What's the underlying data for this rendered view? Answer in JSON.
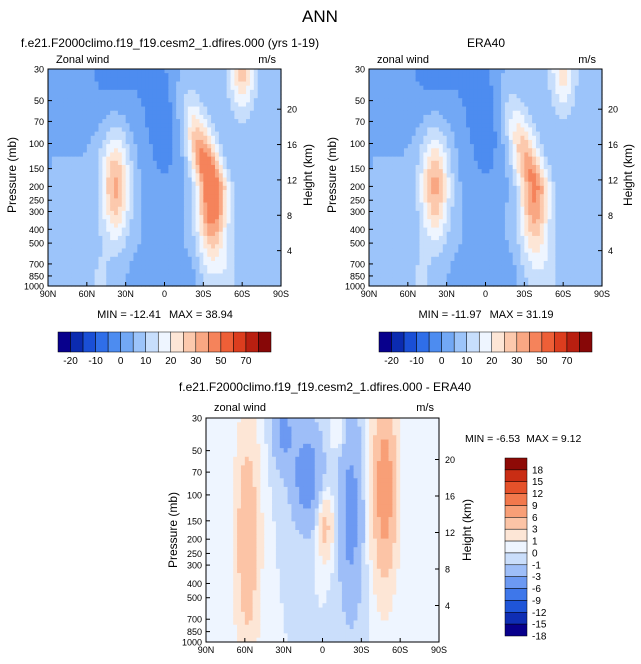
{
  "figure": {
    "title": "ANN"
  },
  "colors": {
    "abs_scale": [
      "#08008c",
      "#0b2bb0",
      "#1a4fd6",
      "#2f6ee8",
      "#4d8cf0",
      "#72a8f5",
      "#9cc4fa",
      "#c7defc",
      "#eef5ff",
      "#fde6d6",
      "#fcc9ad",
      "#f9a783",
      "#f5835b",
      "#ee5f37",
      "#dc3d1e",
      "#b91f10",
      "#870707"
    ],
    "diff_scale": [
      "#08008c",
      "#0f2eb4",
      "#1f55d8",
      "#3e77ea",
      "#6c99f2",
      "#9ebef8",
      "#cadefb",
      "#eef5ff",
      "#fde6d6",
      "#fcc4a6",
      "#f89f77",
      "#f2784c",
      "#e5512a",
      "#c92d14",
      "#8e0a06"
    ]
  },
  "chart_data": [
    {
      "type": "heatmap",
      "panel": "model",
      "title": "f.e21.F2000climo.f19_f19.cesm2_1.dfires.000 (yrs 1-19)",
      "left_label": "Zonal wind",
      "right_label": "m/s",
      "ylabel": "Pressure (mb)",
      "ylabel_right": "Height (km)",
      "x_ticks": [
        "90N",
        "60N",
        "30N",
        "0",
        "30S",
        "60S",
        "90S"
      ],
      "x_values": [
        90,
        60,
        30,
        0,
        -30,
        -60,
        -90
      ],
      "y_ticks": [
        "30",
        "50",
        "70",
        "100",
        "150",
        "200",
        "250",
        "300",
        "400",
        "500",
        "700",
        "850",
        "1000"
      ],
      "y_values": [
        30,
        50,
        70,
        100,
        150,
        200,
        250,
        300,
        400,
        500,
        700,
        850,
        1000
      ],
      "height_ticks": [
        "4",
        "8",
        "12",
        "16",
        "20"
      ],
      "height_values": [
        4,
        8,
        12,
        16,
        20
      ],
      "min_label": "MIN = -12.41",
      "max_label": "MAX = 38.94",
      "min": -12.41,
      "max": 38.94,
      "sh_jet": {
        "lat": -37,
        "p": 200,
        "speed": 38.94
      },
      "nh_jet": {
        "lat": 38,
        "p": 200,
        "speed": 26
      }
    },
    {
      "type": "heatmap",
      "panel": "obs",
      "title": "ERA40",
      "left_label": "zonal wind",
      "right_label": "m/s",
      "ylabel": "Pressure (mb)",
      "ylabel_right": "Height (km)",
      "x_ticks": [
        "90N",
        "60N",
        "30N",
        "0",
        "30S",
        "60S",
        "90S"
      ],
      "x_values": [
        90,
        60,
        30,
        0,
        -30,
        -60,
        -90
      ],
      "y_ticks": [
        "30",
        "50",
        "70",
        "100",
        "150",
        "200",
        "250",
        "300",
        "400",
        "500",
        "700",
        "850",
        "1000"
      ],
      "y_values": [
        30,
        50,
        70,
        100,
        150,
        200,
        250,
        300,
        400,
        500,
        700,
        850,
        1000
      ],
      "height_ticks": [
        "4",
        "8",
        "12",
        "16",
        "20"
      ],
      "height_values": [
        4,
        8,
        12,
        16,
        20
      ],
      "min_label": "MIN = -11.97",
      "max_label": "MAX = 31.19",
      "min": -11.97,
      "max": 31.19,
      "sh_jet": {
        "lat": -38,
        "p": 200,
        "speed": 31.19
      },
      "nh_jet": {
        "lat": 39,
        "p": 200,
        "speed": 26
      }
    },
    {
      "type": "heatmap",
      "panel": "difference",
      "title": "f.e21.F2000climo.f19_f19.cesm2_1.dfires.000 - ERA40",
      "left_label": "zonal wind",
      "right_label": "m/s",
      "ylabel": "Pressure (mb)",
      "ylabel_right": "Height (km)",
      "x_ticks": [
        "90N",
        "60N",
        "30N",
        "0",
        "30S",
        "60S",
        "90S"
      ],
      "x_values": [
        90,
        60,
        30,
        0,
        -30,
        -60,
        -90
      ],
      "y_ticks": [
        "30",
        "50",
        "70",
        "100",
        "150",
        "200",
        "250",
        "300",
        "400",
        "500",
        "700",
        "850",
        "1000"
      ],
      "y_values": [
        30,
        50,
        70,
        100,
        150,
        200,
        250,
        300,
        400,
        500,
        700,
        850,
        1000
      ],
      "height_ticks": [
        "4",
        "8",
        "12",
        "16",
        "20"
      ],
      "height_values": [
        4,
        8,
        12,
        16,
        20
      ],
      "min_label": "MIN = -6.53",
      "max_label": "MAX =  9.12",
      "min": -6.53,
      "max": 9.12
    }
  ],
  "abs_colorbar": {
    "labels": [
      "-20",
      "-10",
      "0",
      "10",
      "20",
      "30",
      "50",
      "70"
    ],
    "levels": [
      -25,
      -20,
      -15,
      -10,
      -5,
      0,
      5,
      10,
      15,
      20,
      25,
      30,
      40,
      50,
      60,
      70
    ]
  },
  "diff_colorbar": {
    "labels": [
      "18",
      "15",
      "12",
      "9",
      "6",
      "3",
      "1",
      "0",
      "-1",
      "-3",
      "-6",
      "-9",
      "-12",
      "-15",
      "-18"
    ],
    "levels": [
      18,
      15,
      12,
      9,
      6,
      3,
      1,
      0,
      -1,
      -3,
      -6,
      -9,
      -12,
      -15
    ]
  }
}
